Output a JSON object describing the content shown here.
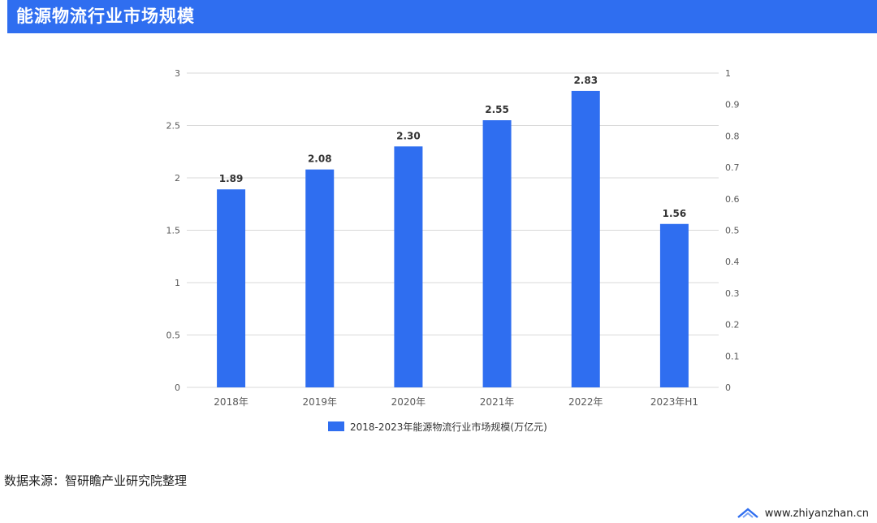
{
  "header": {
    "title": "能源物流行业市场规模"
  },
  "chart_data": {
    "type": "bar",
    "categories": [
      "2018年",
      "2019年",
      "2020年",
      "2021年",
      "2022年",
      "2023年H1"
    ],
    "series": [
      {
        "name": "2018-2023年能源物流行业市场规模(万亿元)",
        "values": [
          1.89,
          2.08,
          2.3,
          2.55,
          2.83,
          1.56
        ]
      }
    ],
    "data_labels": [
      "1.89",
      "2.08",
      "2.30",
      "2.55",
      "2.83",
      "1.56"
    ],
    "ylim": [
      0,
      3
    ],
    "y_ticks": [
      "0",
      "0.5",
      "1",
      "1.5",
      "2",
      "2.5",
      "3"
    ],
    "y2lim": [
      0,
      1
    ],
    "y2_ticks": [
      "0",
      "0.1",
      "0.2",
      "0.3",
      "0.4",
      "0.5",
      "0.6",
      "0.7",
      "0.8",
      "0.9",
      "1"
    ],
    "bar_color": "#2f6ef0",
    "grid": true,
    "legend_position": "bottom"
  },
  "source": {
    "text": "数据来源：智研瞻产业研究院整理"
  },
  "footer": {
    "site": "www.zhiyanzhan.cn"
  }
}
